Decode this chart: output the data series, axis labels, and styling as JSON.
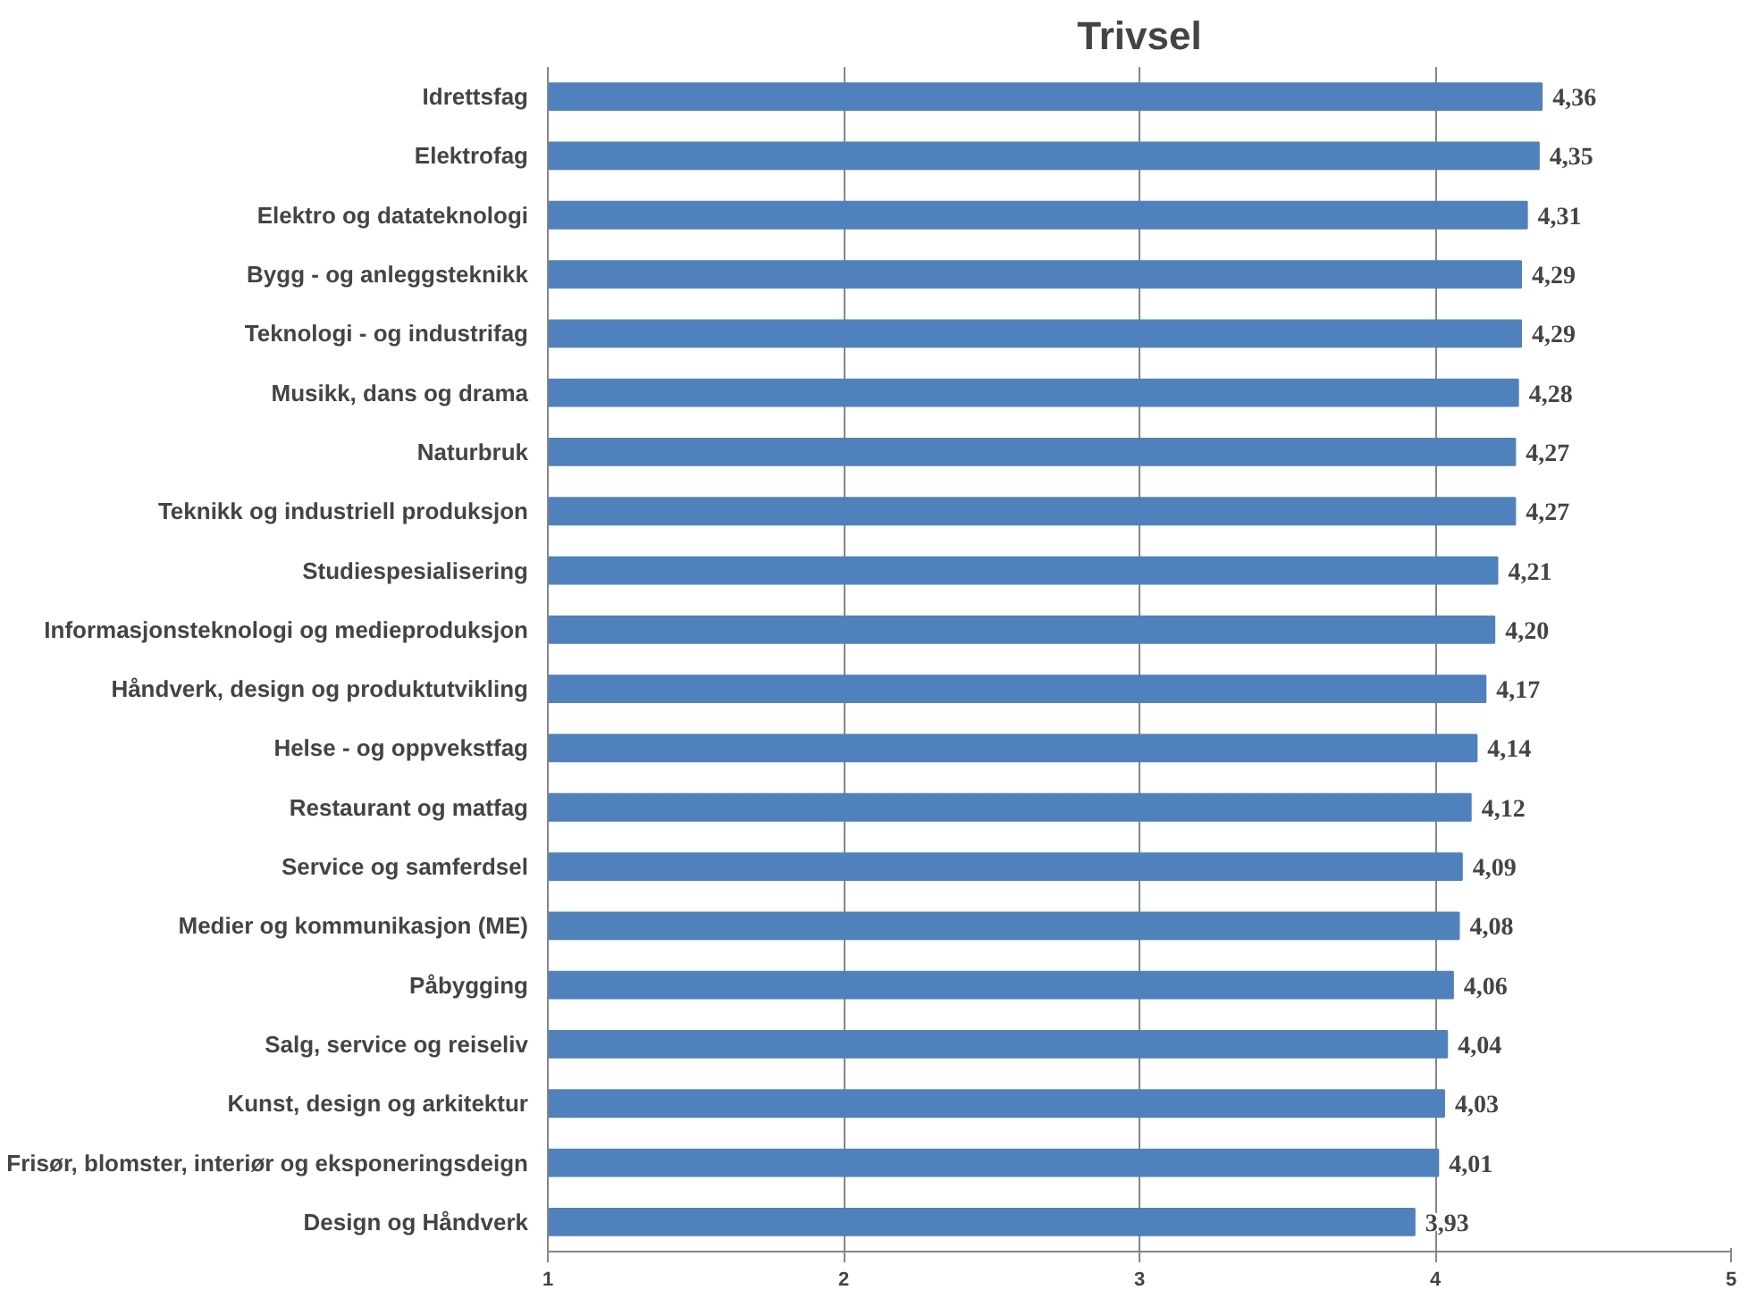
{
  "chart_data": {
    "type": "bar",
    "orientation": "horizontal",
    "title": "Trivsel",
    "categories": [
      "Idrettsfag",
      "Elektrofag",
      "Elektro og datateknologi",
      "Bygg - og anleggsteknikk",
      "Teknologi - og industrifag",
      "Musikk, dans og drama",
      "Naturbruk",
      "Teknikk og industriell produksjon",
      "Studiespesialisering",
      "Informasjonsteknologi og medieproduksjon",
      "Håndverk, design og produktutvikling",
      "Helse - og oppvekstfag",
      "Restaurant og matfag",
      "Service og samferdsel",
      "Medier og kommunikasjon (ME)",
      "Påbygging",
      "Salg, service og reiseliv",
      "Kunst, design og arkitektur",
      "Frisør, blomster, interiør og eksponeringsdeign",
      "Design og Håndverk"
    ],
    "values": [
      4.36,
      4.35,
      4.31,
      4.29,
      4.29,
      4.28,
      4.27,
      4.27,
      4.21,
      4.2,
      4.17,
      4.14,
      4.12,
      4.09,
      4.08,
      4.06,
      4.04,
      4.03,
      4.01,
      3.93
    ],
    "value_labels": [
      "4,36",
      "4,35",
      "4,31",
      "4,29",
      "4,29",
      "4,28",
      "4,27",
      "4,27",
      "4,21",
      "4,20",
      "4,17",
      "4,14",
      "4,12",
      "4,09",
      "4,08",
      "4,06",
      "4,04",
      "4,03",
      "4,01",
      "3,93"
    ],
    "color": "#4f81bd",
    "xlim": [
      1,
      5
    ],
    "xticks": [
      1,
      2,
      3,
      4,
      5
    ],
    "grid": "x"
  }
}
